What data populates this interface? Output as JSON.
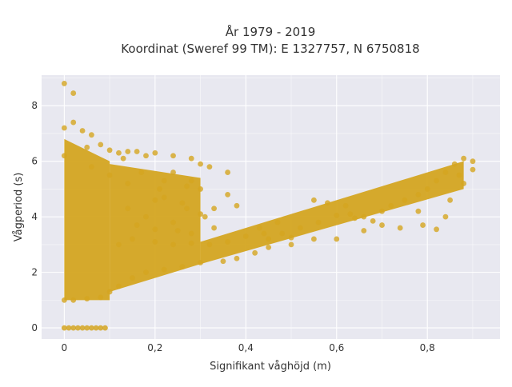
{
  "chart_data": {
    "type": "scatter",
    "title_line1": "År 1979 - 2019",
    "title_line2": "Koordinat (Sweref 99 TM): E 1327757, N 6750818",
    "xlabel": "Signifikant våghöjd (m)",
    "ylabel": "Vågperiod (s)",
    "xlim": [
      -0.05,
      0.96
    ],
    "ylim": [
      -0.4,
      9.1
    ],
    "x_ticks": [
      0,
      0.2,
      0.4,
      0.6,
      0.8
    ],
    "x_tick_labels": [
      "0",
      "0,2",
      "0,4",
      "0,6",
      "0,8"
    ],
    "y_ticks": [
      0,
      2,
      4,
      6,
      8
    ],
    "y_tick_labels": [
      "0",
      "2",
      "4",
      "6",
      "8"
    ],
    "grid": true,
    "colors": {
      "marker": "#d4a521",
      "plot_bg": "#e8e8f0",
      "grid": "#ffffff",
      "text": "#333333"
    },
    "points": [
      [
        0,
        8.8
      ],
      [
        0.02,
        8.45
      ],
      [
        0,
        7.2
      ],
      [
        0.02,
        7.4
      ],
      [
        0.04,
        7.1
      ],
      [
        0.06,
        6.95
      ],
      [
        0.08,
        6.6
      ],
      [
        0.1,
        6.4
      ],
      [
        0.12,
        6.3
      ],
      [
        0.14,
        6.35
      ],
      [
        0.16,
        6.35
      ],
      [
        0.18,
        6.2
      ],
      [
        0.2,
        6.3
      ],
      [
        0.24,
        6.2
      ],
      [
        0.28,
        6.1
      ],
      [
        0.3,
        5.9
      ],
      [
        0.32,
        5.8
      ],
      [
        0.36,
        5.6
      ],
      [
        0.28,
        5.3
      ],
      [
        0.3,
        5.0
      ],
      [
        0.27,
        5.1
      ],
      [
        0.24,
        5.6
      ],
      [
        0.22,
        5.3
      ],
      [
        0.2,
        4.6
      ],
      [
        0.22,
        4.7
      ],
      [
        0.26,
        4.5
      ],
      [
        0.3,
        4.1
      ],
      [
        0.31,
        4.0
      ],
      [
        0.33,
        4.3
      ],
      [
        0.36,
        4.8
      ],
      [
        0.18,
        4.0
      ],
      [
        0.14,
        4.3
      ],
      [
        0.16,
        3.7
      ],
      [
        0.2,
        3.55
      ],
      [
        0.25,
        3.5
      ],
      [
        0.28,
        3.4
      ],
      [
        0.33,
        3.6
      ],
      [
        0.12,
        3.0
      ],
      [
        0.15,
        3.2
      ],
      [
        0.2,
        3.1
      ],
      [
        0.24,
        3.0
      ],
      [
        0.28,
        3.05
      ],
      [
        0.32,
        3.0
      ],
      [
        0.36,
        3.1
      ],
      [
        0.4,
        3.3
      ],
      [
        0.44,
        3.4
      ],
      [
        0.48,
        3.4
      ],
      [
        0.52,
        3.6
      ],
      [
        0.56,
        3.8
      ],
      [
        0.6,
        4.05
      ],
      [
        0.63,
        4.1
      ],
      [
        0.64,
        3.95
      ],
      [
        0.66,
        4.0
      ],
      [
        0.7,
        4.2
      ],
      [
        0.72,
        4.4
      ],
      [
        0.75,
        4.6
      ],
      [
        0.78,
        4.8
      ],
      [
        0.8,
        5.0
      ],
      [
        0.84,
        5.6
      ],
      [
        0.86,
        5.9
      ],
      [
        0.88,
        6.1
      ],
      [
        0.9,
        6.0
      ],
      [
        0.79,
        3.7
      ],
      [
        0.82,
        3.55
      ],
      [
        0.84,
        4.0
      ],
      [
        0.74,
        3.6
      ],
      [
        0.7,
        3.7
      ],
      [
        0.66,
        3.5
      ],
      [
        0.6,
        3.2
      ],
      [
        0.55,
        3.2
      ],
      [
        0.5,
        3.0
      ],
      [
        0.45,
        2.9
      ],
      [
        0.42,
        2.7
      ],
      [
        0.38,
        2.5
      ],
      [
        0.35,
        2.4
      ],
      [
        0.3,
        2.35
      ],
      [
        0.26,
        2.2
      ],
      [
        0.22,
        2.1
      ],
      [
        0.18,
        2.0
      ],
      [
        0.15,
        1.8
      ],
      [
        0.12,
        1.5
      ],
      [
        0.1,
        1.3
      ],
      [
        0.08,
        1.1
      ],
      [
        0.05,
        1.05
      ],
      [
        0.02,
        1.0
      ],
      [
        0,
        1.0
      ],
      [
        0.38,
        4.4
      ],
      [
        0.43,
        3.6
      ],
      [
        0.47,
        3.8
      ],
      [
        0.58,
        4.5
      ],
      [
        0.62,
        4.4
      ],
      [
        0.55,
        4.6
      ],
      [
        0.27,
        4.3
      ],
      [
        0.24,
        3.8
      ],
      [
        0.21,
        5.0
      ],
      [
        0.17,
        5.6
      ],
      [
        0.14,
        5.2
      ],
      [
        0.13,
        6.1
      ],
      [
        0.06,
        5.8
      ],
      [
        0.1,
        5.5
      ],
      [
        0.05,
        6.5
      ],
      [
        0.0,
        6.2
      ],
      [
        0.45,
        3.2
      ],
      [
        0.5,
        3.25
      ],
      [
        0.68,
        3.85
      ],
      [
        0.78,
        4.2
      ],
      [
        0.85,
        4.6
      ],
      [
        0.88,
        5.2
      ],
      [
        0.9,
        5.7
      ],
      [
        0.87,
        5.5
      ],
      [
        0.82,
        5.3
      ]
    ],
    "zero_row_points": [
      [
        0,
        0
      ],
      [
        0.01,
        0
      ],
      [
        0.02,
        0
      ],
      [
        0.03,
        0
      ],
      [
        0.04,
        0
      ],
      [
        0.05,
        0
      ],
      [
        0.06,
        0
      ],
      [
        0.07,
        0
      ],
      [
        0.08,
        0
      ],
      [
        0.09,
        0
      ]
    ],
    "dense_bands": [
      {
        "x0": 0,
        "x1": 0.1,
        "y_low": [
          1.0,
          1.0
        ],
        "y_high": [
          6.8,
          6.0
        ]
      },
      {
        "x0": 0.1,
        "x1": 0.3,
        "y_low": [
          1.3,
          2.3
        ],
        "y_high": [
          5.9,
          5.4
        ]
      },
      {
        "x0": 0.3,
        "x1": 0.88,
        "y_low": [
          2.3,
          5.0
        ],
        "y_high": [
          3.1,
          6.0
        ]
      }
    ]
  }
}
